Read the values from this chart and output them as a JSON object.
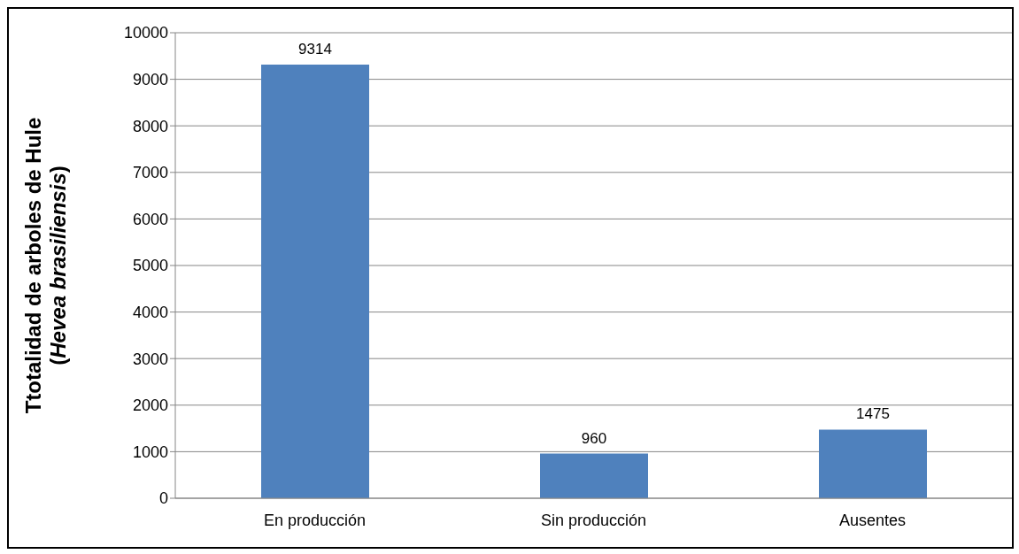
{
  "chart_data": {
    "type": "bar",
    "ylabel": "Ttotalidad de arboles de Hule (Hevea brasiliensis)",
    "categories": [
      "En producción",
      "Sin producción",
      "Ausentes"
    ],
    "values": [
      9314,
      960,
      1475
    ],
    "color": "#4f81bd",
    "ylim": [
      0,
      10000
    ],
    "yticks": [
      0,
      1000,
      2000,
      3000,
      4000,
      5000,
      6000,
      7000,
      8000,
      9000,
      10000
    ],
    "grid": "y",
    "data_labels": true,
    "legend": false
  }
}
